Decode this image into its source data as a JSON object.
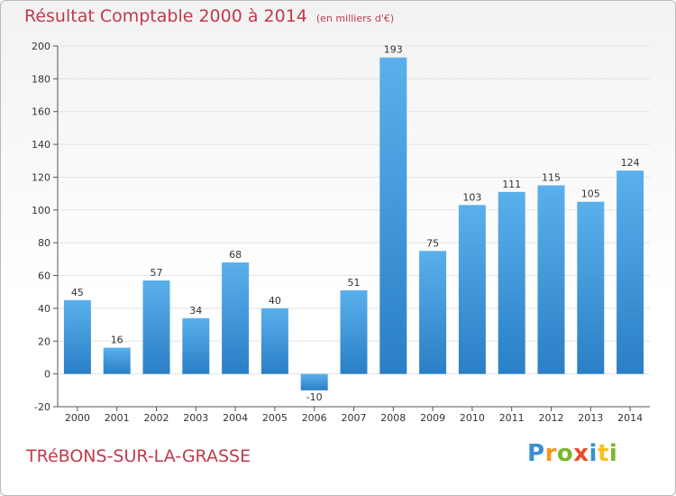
{
  "header": {
    "title": "Résultat Comptable 2000 à 2014",
    "subtitle": "(en milliers d'€)"
  },
  "footer": {
    "commune": "TRéBONS-SUR-LA-GRASSE",
    "brand": "Proxiti",
    "brand_letters": [
      {
        "ch": "P",
        "color": "#3a8fd1"
      },
      {
        "ch": "r",
        "color": "#f29a1f"
      },
      {
        "ch": "o",
        "color": "#7ab829"
      },
      {
        "ch": "x",
        "color": "#e84a2c"
      },
      {
        "ch": "i",
        "color": "#3a8fd1"
      },
      {
        "ch": "t",
        "color": "#f2c21f"
      },
      {
        "ch": "i",
        "color": "#7ab829"
      }
    ]
  },
  "colors": {
    "title": "#c03a4c",
    "bar_light": "#5ab0ec",
    "bar_dark": "#2a7fc6",
    "axis": "#555555",
    "grid": "#e2e2e2"
  },
  "chart_data": {
    "type": "bar",
    "title": "Résultat Comptable 2000 à 2014",
    "subtitle": "(en milliers d'€)",
    "categories": [
      "2000",
      "2001",
      "2002",
      "2003",
      "2004",
      "2005",
      "2006",
      "2007",
      "2008",
      "2009",
      "2010",
      "2011",
      "2012",
      "2013",
      "2014"
    ],
    "values": [
      45,
      16,
      57,
      34,
      68,
      40,
      -10,
      51,
      193,
      75,
      103,
      111,
      115,
      105,
      124
    ],
    "data_labels": [
      "45",
      "16",
      "57",
      "34",
      "68",
      "40",
      "-10",
      "51",
      "193",
      "75",
      "103",
      "111",
      "115",
      "105",
      "124"
    ],
    "ylim": [
      -20,
      200
    ],
    "yticks": [
      -20,
      0,
      20,
      40,
      60,
      80,
      100,
      120,
      140,
      160,
      180,
      200
    ],
    "xlabel": "",
    "ylabel": "",
    "grid": true,
    "legend": "none"
  }
}
